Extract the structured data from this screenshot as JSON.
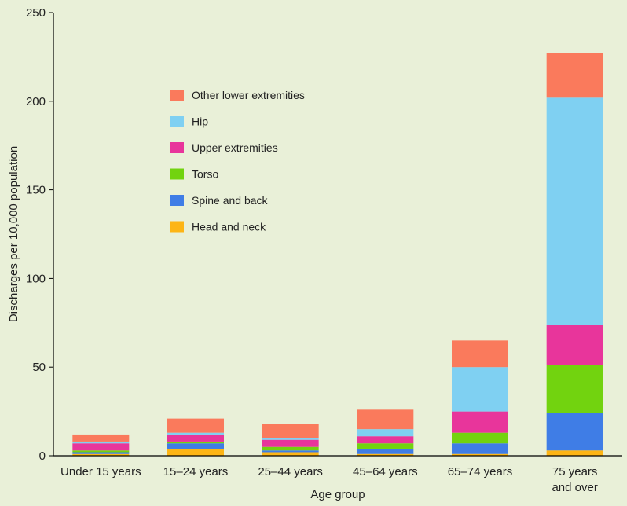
{
  "chart_data": {
    "type": "bar",
    "stacked": true,
    "xlabel": "Age group",
    "ylabel": "Discharges per 10,000 population",
    "ylim": [
      0,
      250
    ],
    "yticks": [
      0,
      50,
      100,
      150,
      200,
      250
    ],
    "grid": false,
    "legend_position": "upper-left (inside plot)",
    "categories": [
      [
        "Under 15 years"
      ],
      [
        "15–24 years"
      ],
      [
        "25–44 years"
      ],
      [
        "45–64 years"
      ],
      [
        "65–74 years"
      ],
      [
        "75 years",
        "and over"
      ]
    ],
    "series": [
      {
        "name": "Head and neck",
        "color": "#fdb515",
        "values": [
          1,
          4,
          2,
          1,
          1,
          3
        ]
      },
      {
        "name": "Spine and back",
        "color": "#3f7de6",
        "values": [
          1,
          3,
          1,
          3,
          6,
          21
        ]
      },
      {
        "name": "Torso",
        "color": "#72d30f",
        "values": [
          1,
          1,
          2,
          3,
          6,
          27
        ]
      },
      {
        "name": "Upper extremities",
        "color": "#e8359b",
        "values": [
          4,
          4,
          4,
          4,
          12,
          23
        ]
      },
      {
        "name": "Hip",
        "color": "#7fd0f2",
        "values": [
          1,
          1,
          1,
          4,
          25,
          128
        ]
      },
      {
        "name": "Other lower extremities",
        "color": "#fa7a5c",
        "values": [
          4,
          8,
          8,
          11,
          15,
          25
        ]
      }
    ],
    "legend_order": [
      "Other lower extremities",
      "Hip",
      "Upper extremities",
      "Torso",
      "Spine and back",
      "Head and neck"
    ]
  }
}
